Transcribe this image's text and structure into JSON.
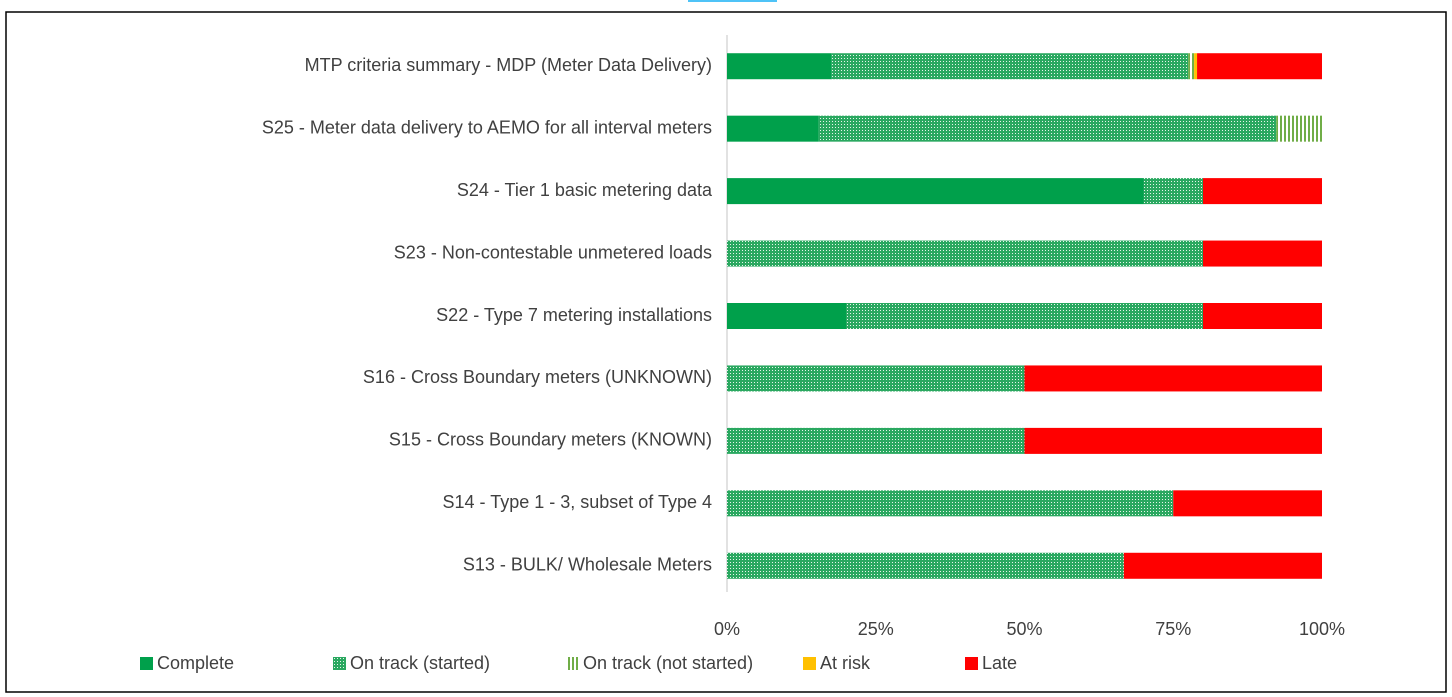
{
  "chart_data": {
    "type": "stacked-barh",
    "categories": [
      "MTP criteria summary - MDP (Meter Data Delivery)",
      "S25 - Meter data delivery to AEMO for all interval meters",
      "S24 - Tier 1 basic metering data",
      "S23 - Non-contestable unmetered loads",
      "S22 - Type 7 metering installations",
      "S16 - Cross Boundary meters (UNKNOWN)",
      "S15 - Cross Boundary meters (KNOWN)",
      "S14 - Type 1 - 3, subset of Type 4",
      "S13 - BULK/ Wholesale Meters"
    ],
    "series": [
      {
        "name": "Complete",
        "color": "#00a04b",
        "pattern": "solid",
        "values": [
          17.6,
          15.4,
          70,
          0,
          20,
          0,
          0,
          0,
          0
        ]
      },
      {
        "name": "On track (started)",
        "color": "#00a04b",
        "pattern": "dots",
        "values": [
          59.9,
          76.9,
          10,
          80,
          60,
          50,
          50,
          75,
          66.7
        ]
      },
      {
        "name": "On track (not started)",
        "color": "#70ad47",
        "pattern": "stripes",
        "values": [
          1.0,
          7.7,
          0,
          0,
          0,
          0,
          0,
          0,
          0
        ]
      },
      {
        "name": "At risk",
        "color": "#ffc000",
        "pattern": "solid",
        "values": [
          0.5,
          0,
          0,
          0,
          0,
          0,
          0,
          0,
          0
        ]
      },
      {
        "name": "Late",
        "color": "#ff0000",
        "pattern": "solid",
        "values": [
          21.0,
          0,
          20,
          20,
          20,
          50,
          50,
          25,
          33.3
        ]
      }
    ],
    "xlim": [
      0,
      100
    ],
    "xticks": [
      {
        "value": 0,
        "label": "0%"
      },
      {
        "value": 25,
        "label": "25%"
      },
      {
        "value": 50,
        "label": "50%"
      },
      {
        "value": 75,
        "label": "75%"
      },
      {
        "value": 100,
        "label": "100%"
      }
    ],
    "legend": "bottom"
  }
}
